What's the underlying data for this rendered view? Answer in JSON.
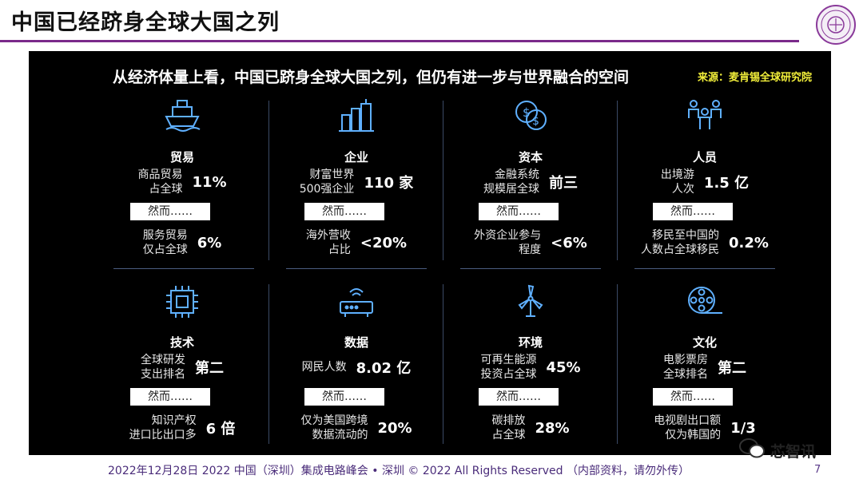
{
  "slide": {
    "title": "中国已经跻身全球大国之列",
    "headline": "从经济体量上看，中国已跻身全球大国之列，但仍有进一步与世界融合的空间",
    "source": "来源：麦肯锡全球研究院",
    "footer": "2022年12月28日 2022 中国（深圳）集成电路峰会 • 深圳 © 2022 All Rights Reserved （内部资料，请勿外传）",
    "page_number": "7",
    "watermark": "芯智讯"
  },
  "however_label": "然而……",
  "cells": [
    {
      "icon": "ship-icon",
      "category": "贸易",
      "stat1_label": "商品贸易\n占全球",
      "stat1_value": "11%",
      "stat2_label": "服务贸易\n仅占全球",
      "stat2_value": "6%"
    },
    {
      "icon": "buildings-icon",
      "category": "企业",
      "stat1_label": "财富世界\n500强企业",
      "stat1_value": "110 家",
      "stat2_label": "海外营收\n占比",
      "stat2_value": "<20%"
    },
    {
      "icon": "coins-icon",
      "category": "资本",
      "stat1_label": "金融系统\n规模居全球",
      "stat1_value": "前三",
      "stat2_label": "外资企业参与\n程度",
      "stat2_value": "<6%"
    },
    {
      "icon": "people-icon",
      "category": "人员",
      "stat1_label": "出境游\n人次",
      "stat1_value": "1.5 亿",
      "stat2_label": "移民至中国的\n人数占全球移民",
      "stat2_value": "0.2%"
    },
    {
      "icon": "chip-icon",
      "category": "技术",
      "stat1_label": "全球研发\n支出排名",
      "stat1_value": "第二",
      "stat2_label": "知识产权\n进口比出口多",
      "stat2_value": "6 倍"
    },
    {
      "icon": "router-icon",
      "category": "数据",
      "stat1_label": "网民人数",
      "stat1_value": "8.02 亿",
      "stat2_label": "仅为美国跨境\n数据流动的",
      "stat2_value": "20%"
    },
    {
      "icon": "wind-turbine-icon",
      "category": "环境",
      "stat1_label": "可再生能源\n投资占全球",
      "stat1_value": "45%",
      "stat2_label": "碳排放\n占全球",
      "stat2_value": "28%"
    },
    {
      "icon": "film-reel-icon",
      "category": "文化",
      "stat1_label": "电影票房\n全球排名",
      "stat1_value": "第二",
      "stat2_label": "电视剧出口额\n仅为韩国的",
      "stat2_value": "1/3"
    }
  ],
  "colors": {
    "panel_bg": "#000000",
    "accent_purple": "#7a2a8a",
    "icon_blue": "#5fb0ff",
    "source_yellow": "#f2ef3a"
  }
}
